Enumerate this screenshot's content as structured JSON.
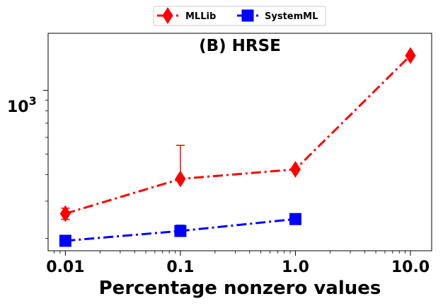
{
  "chart_data": {
    "type": "line",
    "title": "(B) HRSE",
    "xlabel": "Percentage nonzero values",
    "ylabel": "",
    "xscale": "log",
    "yscale": "log",
    "x": [
      0.01,
      0.1,
      1.0,
      10.0
    ],
    "x_tick_labels": [
      "0.01",
      "0.1",
      "1.0",
      "10.0"
    ],
    "y_tick_label": {
      "base": "10",
      "exponent": "3",
      "value": 1000
    },
    "xlim": [
      0.00708,
      15.3
    ],
    "ylim": [
      175,
      1860
    ],
    "legend_position": "top-center",
    "series": [
      {
        "name": "MLLib",
        "color": "#ff0000",
        "marker": "diamond",
        "linestyle": "dash-dot",
        "values": [
          262,
          382,
          424,
          1460
        ],
        "error_upper": [
          278,
          550,
          null,
          null
        ],
        "error_lower": [
          246,
          null,
          null,
          null
        ]
      },
      {
        "name": "SystemML",
        "color": "#0000ff",
        "marker": "square",
        "linestyle": "dash-dot",
        "values": [
          195,
          217,
          247,
          null
        ],
        "error_upper": [
          null,
          231,
          null,
          null
        ],
        "error_lower": [
          null,
          null,
          null,
          null
        ]
      }
    ]
  }
}
